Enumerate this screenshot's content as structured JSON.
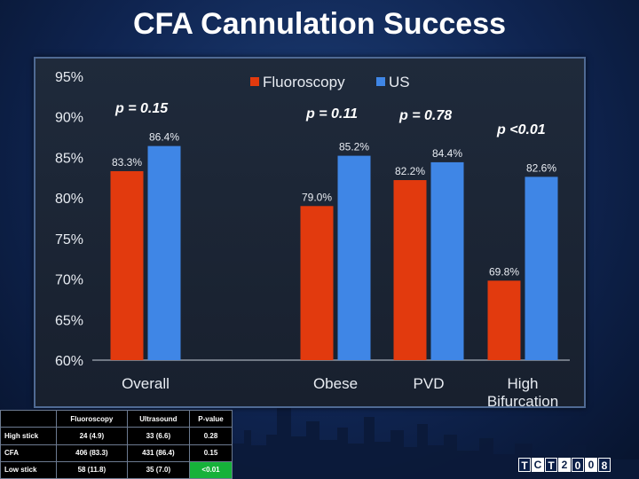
{
  "title": "CFA Cannulation Success",
  "colors": {
    "fluoroscopy": "#e23a0e",
    "us": "#3f86e6",
    "significant": "#16b23a"
  },
  "chart_data": {
    "type": "bar",
    "categories": [
      "Overall",
      "Obese",
      "PVD",
      "High Bifurcation"
    ],
    "series": [
      {
        "name": "Fluoroscopy",
        "values": [
          83.3,
          79.0,
          82.2,
          69.8
        ]
      },
      {
        "name": "US",
        "values": [
          86.4,
          85.2,
          84.4,
          82.6
        ]
      }
    ],
    "data_labels": [
      [
        "83.3%",
        "79.0%",
        "82.2%",
        "69.8%"
      ],
      [
        "86.4%",
        "85.2%",
        "84.4%",
        "82.6%"
      ]
    ],
    "yticks": [
      "95%",
      "90%",
      "85%",
      "80%",
      "75%",
      "70%",
      "65%",
      "60%"
    ],
    "ylim": [
      60,
      95
    ],
    "legend": "top",
    "grid": false,
    "xlabel": "",
    "ylabel": ""
  },
  "p_values": [
    "p = 0.15",
    "p = 0.11",
    "p = 0.78",
    "p <0.01"
  ],
  "table": {
    "headers": [
      "",
      "Fluoroscopy",
      "Ultrasound",
      "P-value"
    ],
    "rows": [
      {
        "label": "High stick",
        "fluoro": "24 (4.9)",
        "us": "33 (6.6)",
        "p": "0.28"
      },
      {
        "label": "CFA",
        "fluoro": "406 (83.3)",
        "us": "431 (86.4)",
        "p": "0.15"
      },
      {
        "label": "Low stick",
        "fluoro": "58 (11.8)",
        "us": "35 (7.0)",
        "p": "<0.01"
      }
    ]
  },
  "logo": {
    "letters": [
      "T",
      "C",
      "T",
      "2",
      "0",
      "0",
      "8"
    ]
  }
}
